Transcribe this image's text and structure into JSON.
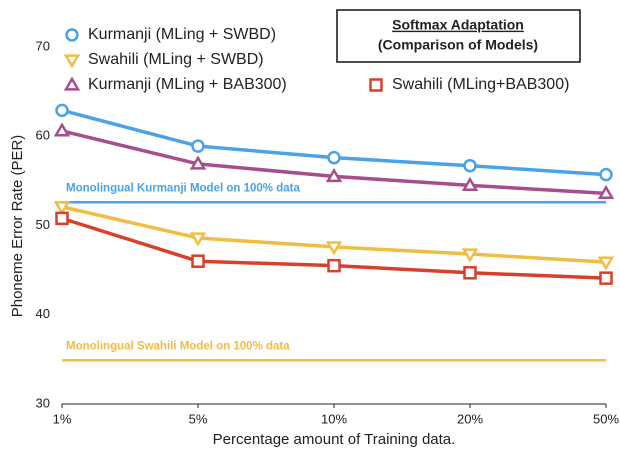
{
  "chart_data": {
    "type": "line",
    "title": "Softmax Adaptation",
    "subtitle": "(Comparison of Models)",
    "x_label": "Percentage amount of Training data.",
    "y_label": "Phoneme Error Rate (PER)",
    "categories": [
      "1%",
      "5%",
      "10%",
      "20%",
      "50%"
    ],
    "ylim": [
      30,
      70
    ],
    "yticks": [
      30,
      40,
      50,
      60,
      70
    ],
    "grid": false,
    "series": [
      {
        "name": "Kurmanji (MLing + SWBD)",
        "color": "#4aa3e8",
        "marker": "circle",
        "values": [
          62.9,
          58.9,
          57.6,
          56.7,
          55.7
        ]
      },
      {
        "name": "Swahili (MLing + SWBD)",
        "color": "#f0bd45",
        "marker": "triangle-down",
        "values": [
          52.1,
          48.6,
          47.6,
          46.8,
          45.9
        ]
      },
      {
        "name": "Kurmanji (MLing + BAB300)",
        "color": "#a64d8c",
        "marker": "triangle-up",
        "values": [
          60.6,
          56.9,
          55.5,
          54.5,
          53.6
        ]
      },
      {
        "name": "Swahili (MLing+BAB300)",
        "color": "#d9402a",
        "marker": "square",
        "values": [
          50.8,
          46.0,
          45.5,
          44.7,
          44.1
        ]
      }
    ],
    "reference_lines": [
      {
        "label": "Monolingual Kurmanji Model on 100% data",
        "value": 52.6,
        "color": "#4aa3e8"
      },
      {
        "label": "Monolingual Swahili Model on 100% data",
        "value": 34.9,
        "color": "#f0bd45"
      }
    ]
  }
}
